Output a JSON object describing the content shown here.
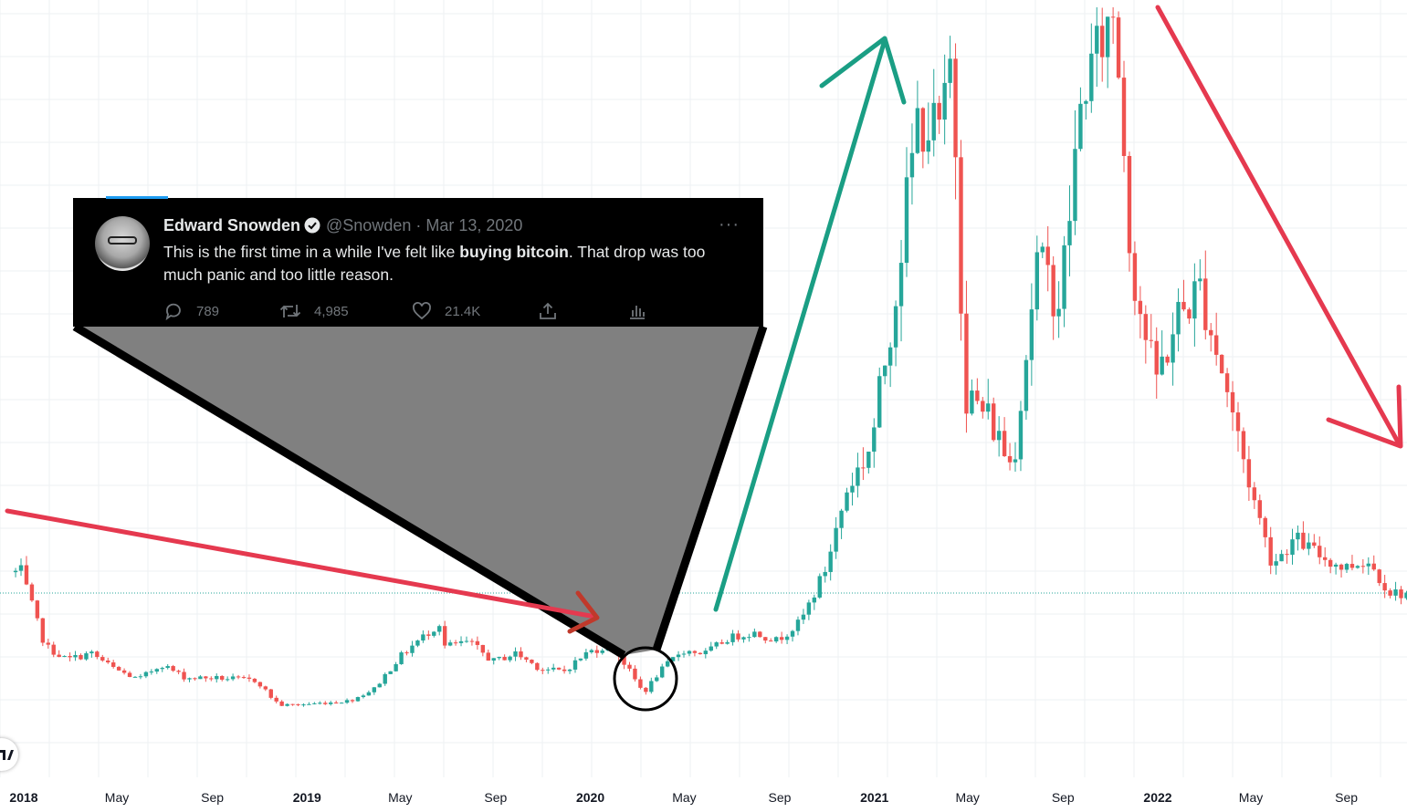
{
  "chart_data": {
    "type": "candlestick",
    "title": "",
    "xlabel": "",
    "ylabel": "",
    "x_tick_labels": [
      {
        "label": "2018",
        "year": true
      },
      {
        "label": "May",
        "year": false
      },
      {
        "label": "Sep",
        "year": false
      },
      {
        "label": "2019",
        "year": true
      },
      {
        "label": "May",
        "year": false
      },
      {
        "label": "Sep",
        "year": false
      },
      {
        "label": "2020",
        "year": true
      },
      {
        "label": "May",
        "year": false
      },
      {
        "label": "Sep",
        "year": false
      },
      {
        "label": "2021",
        "year": true
      },
      {
        "label": "May",
        "year": false
      },
      {
        "label": "Sep",
        "year": false
      },
      {
        "label": "2022",
        "year": true
      },
      {
        "label": "May",
        "year": false
      },
      {
        "label": "Sep",
        "year": false
      }
    ],
    "x_range": [
      "2018-01",
      "2022-10"
    ],
    "price_keypoints": [
      [
        "2018-01",
        19000
      ],
      [
        "2018-02",
        10000
      ],
      [
        "2018-03",
        8500
      ],
      [
        "2018-04",
        9200
      ],
      [
        "2018-05",
        7500
      ],
      [
        "2018-06",
        6300
      ],
      [
        "2018-07",
        8000
      ],
      [
        "2018-08",
        6500
      ],
      [
        "2018-09",
        6500
      ],
      [
        "2018-10",
        6400
      ],
      [
        "2018-11",
        6200
      ],
      [
        "2018-11-20",
        4300
      ],
      [
        "2018-12",
        3500
      ],
      [
        "2019-01",
        3600
      ],
      [
        "2019-02",
        3800
      ],
      [
        "2019-03",
        4000
      ],
      [
        "2019-04",
        5300
      ],
      [
        "2019-05",
        8500
      ],
      [
        "2019-06",
        11000
      ],
      [
        "2019-06-26",
        13000
      ],
      [
        "2019-07",
        10000
      ],
      [
        "2019-08",
        10500
      ],
      [
        "2019-09",
        8300
      ],
      [
        "2019-10",
        9200
      ],
      [
        "2019-11",
        7500
      ],
      [
        "2019-12",
        7200
      ],
      [
        "2020-01",
        9300
      ],
      [
        "2020-02",
        10200
      ],
      [
        "2020-03-12",
        5000
      ],
      [
        "2020-03-13",
        4800
      ],
      [
        "2020-04",
        7000
      ],
      [
        "2020-05",
        9500
      ],
      [
        "2020-06",
        9200
      ],
      [
        "2020-07",
        11000
      ],
      [
        "2020-08",
        11700
      ],
      [
        "2020-09",
        10700
      ],
      [
        "2020-10",
        13000
      ],
      [
        "2020-11",
        19000
      ],
      [
        "2020-12",
        29000
      ],
      [
        "2021-01",
        33000
      ],
      [
        "2021-02",
        45000
      ],
      [
        "2021-03",
        58000
      ],
      [
        "2021-04",
        57000
      ],
      [
        "2021-04-14",
        64000
      ],
      [
        "2021-05",
        37000
      ],
      [
        "2021-06",
        35000
      ],
      [
        "2021-07",
        31000
      ],
      [
        "2021-08",
        47000
      ],
      [
        "2021-09",
        44000
      ],
      [
        "2021-10",
        61000
      ],
      [
        "2021-11-10",
        68000
      ],
      [
        "2021-12",
        47000
      ],
      [
        "2022-01",
        38000
      ],
      [
        "2022-02",
        43000
      ],
      [
        "2022-03",
        45000
      ],
      [
        "2022-04",
        38000
      ],
      [
        "2022-05",
        30000
      ],
      [
        "2022-06",
        20000
      ],
      [
        "2022-07",
        23000
      ],
      [
        "2022-08",
        21000
      ],
      [
        "2022-09",
        19500
      ],
      [
        "2022-10",
        20500
      ],
      [
        "2022-11",
        16500
      ]
    ],
    "last_price_line": 16500,
    "grid": true
  },
  "annotations": {
    "tweet": {
      "name": "Edward Snowden",
      "handle_date": "@Snowden · Mar 13, 2020",
      "text_before": "This is the first time in a while I've felt like ",
      "text_bold": "buying bitcoin",
      "text_after": ". That drop was too much panic and too little reason.",
      "replies": "789",
      "retweets": "4,985",
      "likes": "21.4K",
      "more": "···"
    },
    "colors": {
      "up": "#26a69a",
      "down": "#ef5350",
      "arrow_green": "#1a9e84",
      "arrow_red": "#e5394f",
      "grid": "#eef0f3",
      "callout_fill": "#808080"
    }
  }
}
